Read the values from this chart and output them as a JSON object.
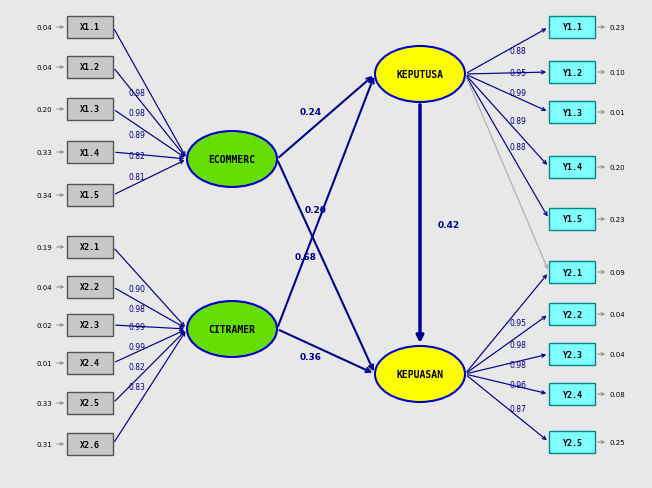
{
  "bg_color": "#e8e8e8",
  "x_boxes": [
    "X1.1",
    "X1.2",
    "X1.3",
    "X1.4",
    "X1.5",
    "X2.1",
    "X2.2",
    "X2.3",
    "X2.4",
    "X2.5",
    "X2.6"
  ],
  "x_left_vals": [
    "0.04",
    "0.04",
    "0.20",
    "0.33",
    "0.34",
    "0.19",
    "0.04",
    "0.02",
    "0.01",
    "0.33",
    "0.31"
  ],
  "x_loadings_ecomm": [
    "0.98",
    "0.98",
    "0.89",
    "0.82",
    "0.81"
  ],
  "x_loadings_citra": [
    "0.90",
    "0.98",
    "0.99",
    "0.99",
    "0.82",
    "0.83"
  ],
  "y_boxes_top": [
    "Y1.1",
    "Y1.2",
    "Y1.3",
    "Y1.4",
    "Y1.5"
  ],
  "y_boxes_bot": [
    "Y2.1",
    "Y2.2",
    "Y2.3",
    "Y2.4",
    "Y2.5"
  ],
  "y_loadings_keputusan": [
    "0.88",
    "0.95",
    "0.99",
    "0.89",
    "0.88"
  ],
  "y_loadings_kepuasan": [
    "0.95",
    "0.98",
    "0.98",
    "0.96",
    "0.87"
  ],
  "y_right_top": [
    "0.23",
    "0.10",
    "0.01",
    "0.20",
    "0.23"
  ],
  "y_right_bot": [
    "0.09",
    "0.04",
    "0.04",
    "0.08",
    "0.25"
  ],
  "latent_ecomm": "ECOMMERC",
  "latent_citra": "CITRAMER",
  "latent_keputusan": "KEPUTUSA",
  "latent_kepuasan": "KEPUASAN",
  "latent_color_green": "#66dd00",
  "latent_color_yellow": "#ffff00",
  "latent_edge": "#0000cc",
  "path_ecomm_keputusan": "0.24",
  "path_ecomm_kepuasan": "0.68",
  "path_citra_keputusan": "0.20",
  "path_citra_kepuasan": "0.36",
  "path_keputusan_kepuasan": "0.42",
  "arrow_color": "#00008b",
  "gray_arrow_color": "#aaaaaa",
  "text_color": "#00008b",
  "font_size_box": 6,
  "font_size_loading": 5.5,
  "font_size_path": 6.5
}
